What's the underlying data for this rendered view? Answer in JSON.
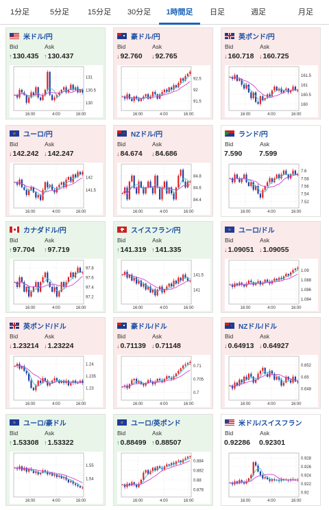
{
  "tabs": [
    "1分足",
    "5分足",
    "15分足",
    "30分足",
    "1時間足",
    "日足",
    "週足",
    "月足"
  ],
  "active_tab": 4,
  "labels": {
    "bid": "Bid",
    "ask": "Ask"
  },
  "colors": {
    "up_bg": "#eaf5ea",
    "down_bg": "#fbeaea",
    "flat_bg": "#ffffff",
    "up": "#1d8a1d",
    "down": "#d02222",
    "bull_candle": "#e02020",
    "bear_candle": "#1f3fa0",
    "ma1": "#40bfd0",
    "ma2": "#d040d0",
    "link": "#1a4fa3"
  },
  "cards": [
    {
      "pair": "米ドル/円",
      "flag": "US",
      "trend": "up",
      "bid_dir": "up",
      "ask_dir": "up",
      "bid": "130.435",
      "ask": "130.437",
      "ticks": [
        "131",
        "130.5",
        "130"
      ],
      "times": [
        "16:00",
        "4:00",
        "16:00"
      ],
      "range": [
        129.8,
        131.3
      ],
      "series": [
        130.3,
        130.2,
        130.5,
        130.4,
        130.3,
        130.0,
        130.2,
        130.4,
        130.3,
        130.6,
        130.2,
        130.1,
        130.3,
        130.5,
        131.2,
        130.3,
        130.1,
        130.2,
        130.3,
        130.4,
        130.5,
        130.6,
        130.4,
        130.5,
        130.7,
        130.5,
        130.6,
        130.4,
        130.5,
        130.4
      ]
    },
    {
      "pair": "豪ドル/円",
      "flag": "AU",
      "trend": "down",
      "bid_dir": "down",
      "ask_dir": "down",
      "bid": "92.760",
      "ask": "92.765",
      "ticks": [
        "92.5",
        "92",
        "91.5"
      ],
      "times": [
        "16:00",
        "4:00",
        "16:00"
      ],
      "range": [
        91.2,
        92.9
      ],
      "series": [
        91.7,
        91.6,
        91.8,
        91.6,
        91.5,
        91.7,
        91.6,
        91.5,
        91.6,
        91.7,
        91.8,
        91.6,
        91.7,
        91.9,
        91.8,
        91.6,
        91.8,
        91.9,
        92.0,
        91.9,
        92.1,
        92.0,
        92.2,
        92.1,
        92.3,
        92.5,
        92.4,
        92.6,
        92.7,
        92.8
      ]
    },
    {
      "pair": "英ポンド/円",
      "flag": "GB",
      "trend": "down",
      "bid_dir": "down",
      "ask_dir": "down",
      "bid": "160.718",
      "ask": "160.725",
      "ticks": [
        "161.5",
        "161",
        "160.5",
        "160"
      ],
      "times": [
        "16:00",
        "4:00",
        "16:00"
      ],
      "range": [
        159.8,
        161.8
      ],
      "series": [
        161.4,
        161.3,
        161.5,
        161.2,
        161.3,
        161.0,
        160.8,
        161.0,
        160.6,
        160.3,
        160.6,
        160.1,
        160.0,
        160.4,
        160.2,
        160.3,
        160.5,
        160.4,
        160.7,
        160.9,
        160.7,
        160.8,
        160.6,
        160.7,
        160.8,
        160.6,
        160.7,
        160.9,
        160.7,
        160.7
      ]
    },
    {
      "pair": "ユーロ/円",
      "flag": "EU",
      "trend": "down",
      "bid_dir": "down",
      "ask_dir": "down",
      "bid": "142.242",
      "ask": "142.247",
      "ticks": [
        "142",
        "141.5"
      ],
      "times": [
        "16:00",
        "4:00",
        "16:00"
      ],
      "range": [
        140.9,
        142.4
      ],
      "series": [
        141.8,
        141.7,
        141.9,
        141.6,
        141.5,
        141.3,
        141.5,
        141.6,
        141.4,
        141.2,
        141.3,
        141.1,
        141.5,
        141.8,
        141.6,
        141.7,
        141.5,
        141.4,
        141.6,
        141.7,
        141.8,
        141.6,
        141.9,
        142.0,
        141.8,
        142.1,
        142.0,
        142.2,
        142.1,
        142.2
      ]
    },
    {
      "pair": "NZドル/円",
      "flag": "NZ",
      "trend": "down",
      "bid_dir": "down",
      "ask_dir": "down",
      "bid": "84.674",
      "ask": "84.686",
      "ticks": [
        "84.8",
        "84.6",
        "84.4"
      ],
      "times": [
        "16:00",
        "4:00",
        "16:00"
      ],
      "range": [
        84.3,
        84.95
      ],
      "series": [
        84.5,
        84.6,
        84.4,
        84.7,
        84.8,
        84.6,
        84.5,
        84.7,
        84.6,
        84.5,
        84.6,
        84.7,
        84.6,
        84.5,
        84.8,
        84.6,
        84.4,
        84.6,
        84.7,
        84.5,
        84.6,
        84.5,
        84.4,
        84.6,
        84.8,
        84.9,
        84.7,
        84.6,
        84.7,
        84.7
      ]
    },
    {
      "pair": "ランド/円",
      "flag": "ZA",
      "trend": "flat",
      "bid_dir": "none",
      "ask_dir": "none",
      "bid": "7.590",
      "ask": "7.599",
      "ticks": [
        "7.6",
        "7.58",
        "7.56",
        "7.54",
        "7.52"
      ],
      "times": [
        "16:00",
        "4:00",
        "16:00"
      ],
      "range": [
        7.51,
        7.61
      ],
      "series": [
        7.58,
        7.57,
        7.59,
        7.58,
        7.57,
        7.58,
        7.59,
        7.57,
        7.56,
        7.57,
        7.55,
        7.56,
        7.54,
        7.53,
        7.55,
        7.56,
        7.57,
        7.58,
        7.57,
        7.58,
        7.59,
        7.58,
        7.59,
        7.6,
        7.59,
        7.58,
        7.59,
        7.6,
        7.59,
        7.59
      ]
    },
    {
      "pair": "カナダドル/円",
      "flag": "CA",
      "trend": "up",
      "bid_dir": "up",
      "ask_dir": "up",
      "bid": "97.704",
      "ask": "97.719",
      "ticks": [
        "97.8",
        "97.6",
        "97.4",
        "97.2"
      ],
      "times": [
        "16:00",
        "4:00",
        "16:00"
      ],
      "range": [
        97.1,
        97.9
      ],
      "series": [
        97.5,
        97.4,
        97.6,
        97.5,
        97.3,
        97.4,
        97.2,
        97.3,
        97.4,
        97.5,
        97.3,
        97.5,
        97.6,
        97.7,
        97.5,
        97.4,
        97.3,
        97.4,
        97.2,
        97.3,
        97.5,
        97.4,
        97.5,
        97.6,
        97.7,
        97.6,
        97.7,
        97.8,
        97.7,
        97.7
      ]
    },
    {
      "pair": "スイスフラン/円",
      "flag": "CH",
      "trend": "up",
      "bid_dir": "up",
      "ask_dir": "up",
      "bid": "141.319",
      "ask": "141.335",
      "ticks": [
        "141.5",
        "141"
      ],
      "times": [
        "16:00",
        "4:00",
        "16:00"
      ],
      "range": [
        140.6,
        141.9
      ],
      "series": [
        141.5,
        141.6,
        141.4,
        141.5,
        141.3,
        141.4,
        141.2,
        141.3,
        141.1,
        141.2,
        141.0,
        141.1,
        140.9,
        141.0,
        140.8,
        141.0,
        141.1,
        140.9,
        141.0,
        141.1,
        141.2,
        141.1,
        141.3,
        141.2,
        141.4,
        141.3,
        141.5,
        141.4,
        141.3,
        141.3
      ]
    },
    {
      "pair": "ユーロ/ドル",
      "flag": "EU",
      "trend": "down",
      "bid_dir": "down",
      "ask_dir": "down",
      "bid": "1.09051",
      "ask": "1.09055",
      "ticks": [
        "1.09",
        "1.088",
        "1.086",
        "1.084"
      ],
      "times": [
        "16:00",
        "4:00",
        "16:00"
      ],
      "range": [
        1.0835,
        1.0915
      ],
      "series": [
        1.087,
        1.0865,
        1.0872,
        1.0868,
        1.0874,
        1.087,
        1.0866,
        1.0872,
        1.0878,
        1.0875,
        1.0869,
        1.0873,
        1.0877,
        1.087,
        1.0874,
        1.088,
        1.0876,
        1.0872,
        1.0878,
        1.0882,
        1.0879,
        1.0884,
        1.0881,
        1.0887,
        1.0892,
        1.0889,
        1.0895,
        1.09,
        1.0903,
        1.0905
      ]
    },
    {
      "pair": "英ポンド/ドル",
      "flag": "GB",
      "trend": "down",
      "bid_dir": "down",
      "ask_dir": "down",
      "bid": "1.23214",
      "ask": "1.23224",
      "ticks": [
        "1.24",
        "1.235",
        "1.23"
      ],
      "times": [
        "16:00",
        "4:00",
        "16:00"
      ],
      "range": [
        1.226,
        1.242
      ],
      "series": [
        1.239,
        1.24,
        1.238,
        1.239,
        1.237,
        1.236,
        1.233,
        1.23,
        1.229,
        1.231,
        1.233,
        1.232,
        1.234,
        1.233,
        1.231,
        1.232,
        1.233,
        1.234,
        1.233,
        1.232,
        1.233,
        1.232,
        1.233,
        1.231,
        1.232,
        1.233,
        1.232,
        1.232,
        1.233,
        1.232
      ]
    },
    {
      "pair": "豪ドル/ドル",
      "flag": "AU",
      "trend": "down",
      "bid_dir": "down",
      "ask_dir": "down",
      "bid": "0.71139",
      "ask": "0.71148",
      "ticks": [
        "0.71",
        "0.705",
        "0.7"
      ],
      "times": [
        "16:00",
        "4:00",
        "16:00"
      ],
      "range": [
        0.698,
        0.7125
      ],
      "series": [
        0.702,
        0.7025,
        0.7015,
        0.703,
        0.7045,
        0.705,
        0.7035,
        0.704,
        0.703,
        0.7025,
        0.7035,
        0.7045,
        0.704,
        0.703,
        0.704,
        0.705,
        0.7045,
        0.704,
        0.705,
        0.706,
        0.7055,
        0.705,
        0.706,
        0.707,
        0.708,
        0.709,
        0.71,
        0.7105,
        0.711,
        0.7114
      ]
    },
    {
      "pair": "NZドル/ドル",
      "flag": "NZ",
      "trend": "down",
      "bid_dir": "down",
      "ask_dir": "down",
      "bid": "0.64913",
      "ask": "0.64927",
      "ticks": [
        "0.652",
        "0.65",
        "0.648"
      ],
      "times": [
        "16:00",
        "4:00",
        "16:00"
      ],
      "range": [
        0.6465,
        0.653
      ],
      "series": [
        0.6485,
        0.648,
        0.649,
        0.6485,
        0.6495,
        0.649,
        0.65,
        0.6495,
        0.6505,
        0.65,
        0.649,
        0.6495,
        0.6505,
        0.651,
        0.6515,
        0.6505,
        0.65,
        0.651,
        0.6505,
        0.6495,
        0.65,
        0.6495,
        0.6485,
        0.649,
        0.65,
        0.6495,
        0.649,
        0.65,
        0.6492,
        0.6491
      ]
    },
    {
      "pair": "ユーロ/豪ドル",
      "flag": "EU",
      "trend": "up",
      "bid_dir": "up",
      "ask_dir": "up",
      "bid": "1.53308",
      "ask": "1.53322",
      "ticks": [
        "1.55",
        "1.54"
      ],
      "times": [
        "16:00",
        "4:00",
        "16:00"
      ],
      "range": [
        1.528,
        1.557
      ],
      "series": [
        1.548,
        1.547,
        1.549,
        1.546,
        1.548,
        1.545,
        1.547,
        1.546,
        1.544,
        1.545,
        1.543,
        1.544,
        1.546,
        1.545,
        1.543,
        1.544,
        1.542,
        1.543,
        1.541,
        1.542,
        1.54,
        1.541,
        1.539,
        1.537,
        1.538,
        1.536,
        1.535,
        1.534,
        1.533,
        1.533
      ]
    },
    {
      "pair": "ユーロ/英ポンド",
      "flag": "EU",
      "trend": "up",
      "bid_dir": "up",
      "ask_dir": "up",
      "bid": "0.88499",
      "ask": "0.88507",
      "ticks": [
        "0.884",
        "0.882",
        "0.88",
        "0.878"
      ],
      "times": [
        "16:00",
        "4:00",
        "16:00"
      ],
      "range": [
        0.877,
        0.885
      ],
      "series": [
        0.879,
        0.8785,
        0.8792,
        0.8788,
        0.8795,
        0.879,
        0.8785,
        0.8792,
        0.88,
        0.8815,
        0.882,
        0.8812,
        0.8818,
        0.8825,
        0.882,
        0.8828,
        0.8825,
        0.8822,
        0.8828,
        0.8832,
        0.883,
        0.8835,
        0.8832,
        0.8838,
        0.884,
        0.8836,
        0.8842,
        0.8845,
        0.8848,
        0.885
      ]
    },
    {
      "pair": "米ドル/スイスフラン",
      "flag": "US",
      "trend": "flat",
      "bid_dir": "none",
      "ask_dir": "none",
      "bid": "0.92286",
      "ask": "0.92301",
      "ticks": [
        "0.928",
        "0.926",
        "0.924",
        "0.922",
        "0.92"
      ],
      "times": [
        "16:00",
        "4:00",
        "16:00"
      ],
      "range": [
        0.9195,
        0.9285
      ],
      "series": [
        0.9222,
        0.9218,
        0.9225,
        0.922,
        0.9228,
        0.9224,
        0.922,
        0.9226,
        0.9232,
        0.924,
        0.927,
        0.9262,
        0.9248,
        0.924,
        0.9232,
        0.9235,
        0.923,
        0.9226,
        0.923,
        0.9227,
        0.9229,
        0.9226,
        0.923,
        0.9228,
        0.9229,
        0.9227,
        0.923,
        0.9229,
        0.9228,
        0.9229
      ]
    }
  ]
}
